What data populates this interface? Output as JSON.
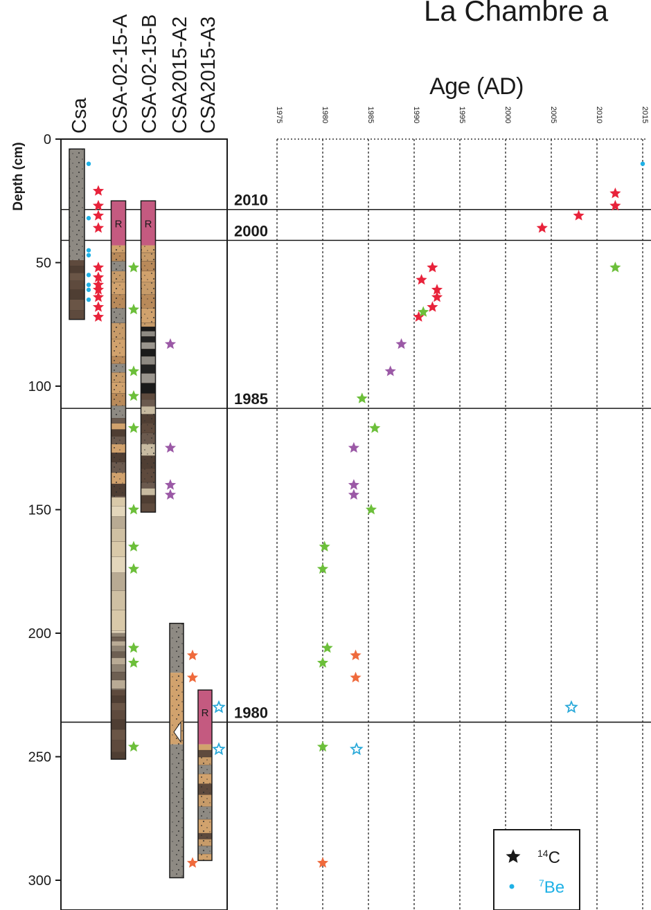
{
  "colors": {
    "red_star": "#e8223a",
    "green_star": "#6cbf3a",
    "purple_star": "#9b59a6",
    "orange_star": "#ef6a3c",
    "blue_star_outline": "#2aa9d9",
    "be7_dot": "#1fb1e6",
    "core_gray": "#8e8a83",
    "core_brown": "#5e4a3d",
    "core_tan": "#d1a26d",
    "core_pink": "#c45a80",
    "core_light": "#d9c9a9"
  },
  "chart_data": {
    "type": "scatter",
    "title": "La Chambre a",
    "ylabel": "Depth (cm)",
    "xlabel": "Age (AD)",
    "ylim": [
      0,
      310
    ],
    "xlim": [
      1975,
      2015
    ],
    "y_ticks": [
      "0",
      "50",
      "100",
      "150",
      "200",
      "250",
      "300"
    ],
    "x_ticks": [
      "1975",
      "1980",
      "1985",
      "1990",
      "1995",
      "2000",
      "2005",
      "2010",
      "2015"
    ],
    "cores": [
      {
        "name": "Csa",
        "top": 4,
        "bottom": 73
      },
      {
        "name": "CSA-02-15-A",
        "top": 25,
        "bottom": 251
      },
      {
        "name": "CSA-02-15-B",
        "top": 25,
        "bottom": 151
      },
      {
        "name": "CSA2015-A2",
        "top": 196,
        "bottom": 299
      },
      {
        "name": "CSA2015-A3",
        "top": 223,
        "bottom": 292
      }
    ],
    "reference_lines": [
      {
        "label": "2010",
        "depth": 28.5
      },
      {
        "label": "2000",
        "depth": 41
      },
      {
        "label": "1985",
        "depth": 109
      },
      {
        "label": "1980",
        "depth": 236
      }
    ],
    "core_markers": [
      {
        "core": "Csa",
        "series": "be7",
        "depths": [
          10,
          32,
          45,
          47,
          55,
          59,
          61,
          65
        ]
      },
      {
        "core": "Csa",
        "series": "c14_red",
        "depths": [
          21,
          27,
          31,
          36,
          52,
          56,
          59,
          61,
          64,
          68,
          72
        ]
      },
      {
        "core": "CSA-02-15-A",
        "series": "c14_green",
        "depths": [
          52,
          69,
          94,
          104,
          117,
          150,
          165,
          174,
          206,
          212,
          246
        ]
      },
      {
        "core": "CSA-02-15-B",
        "series": "c14_purple",
        "depths": [
          83,
          125,
          140,
          144
        ]
      },
      {
        "core": "CSA2015-A2",
        "series": "c14_orange",
        "depths": [
          209,
          218,
          293
        ]
      },
      {
        "core": "CSA2015-A3",
        "series": "c14_blue",
        "depths": [
          230,
          247
        ]
      }
    ],
    "series": [
      {
        "name": "7Be",
        "key": "be7",
        "marker": "dot",
        "points": [
          [
            2015,
            10
          ]
        ]
      },
      {
        "name": "14C",
        "key": "c14_red",
        "marker": "star",
        "points": [
          [
            2012,
            22
          ],
          [
            2012,
            27
          ],
          [
            2008,
            31
          ],
          [
            2004,
            36
          ],
          [
            1992,
            52
          ],
          [
            1990.8,
            57
          ],
          [
            1992.5,
            61
          ],
          [
            1992.5,
            64
          ],
          [
            1992,
            68
          ],
          [
            1990.5,
            72
          ]
        ]
      },
      {
        "name": "",
        "key": "c14_green",
        "marker": "star",
        "points": [
          [
            2012,
            52
          ],
          [
            1991,
            70
          ],
          [
            1984.3,
            105
          ],
          [
            1985.7,
            117
          ],
          [
            1985.3,
            150
          ],
          [
            1980.2,
            165
          ],
          [
            1980,
            174
          ],
          [
            1980.5,
            206
          ],
          [
            1980,
            212
          ],
          [
            1980,
            246
          ]
        ]
      },
      {
        "name": "",
        "key": "c14_purple",
        "marker": "star",
        "points": [
          [
            1988.6,
            83
          ],
          [
            1987.4,
            94
          ],
          [
            1983.4,
            125
          ],
          [
            1983.4,
            140
          ],
          [
            1983.4,
            144
          ]
        ]
      },
      {
        "name": "",
        "key": "c14_orange",
        "marker": "star",
        "points": [
          [
            1983.6,
            209
          ],
          [
            1983.6,
            218
          ],
          [
            1980,
            293
          ]
        ]
      },
      {
        "name": "",
        "key": "c14_blue",
        "marker": "open-star",
        "points": [
          [
            2007.2,
            230
          ],
          [
            1983.7,
            247
          ]
        ]
      }
    ],
    "legend": {
      "placement": "bottom-right",
      "items": [
        {
          "label": "14C",
          "marker": "star"
        },
        {
          "label": "7Be",
          "marker": "dot"
        }
      ]
    },
    "annotations": [
      {
        "text": "R",
        "note": "core-top label"
      }
    ]
  }
}
